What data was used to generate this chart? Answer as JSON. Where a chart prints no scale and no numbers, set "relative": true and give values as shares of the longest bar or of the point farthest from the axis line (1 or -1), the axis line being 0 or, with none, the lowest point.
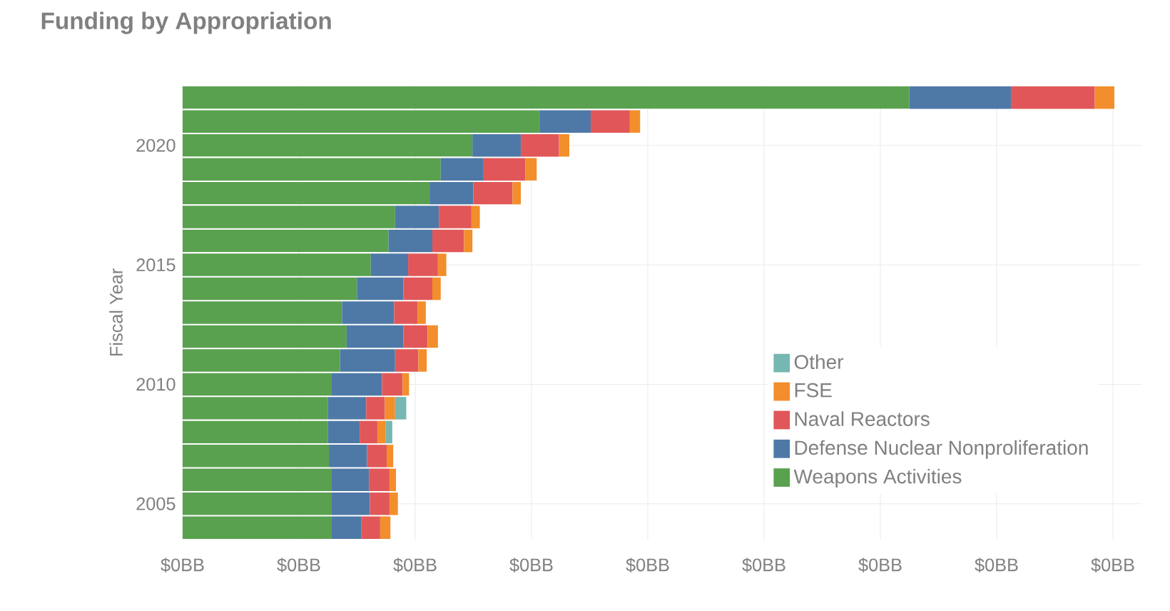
{
  "chart_data": {
    "type": "bar",
    "orientation": "horizontal",
    "stacked": true,
    "relative": true,
    "title": "Funding by Appropriation",
    "ylabel": "Fiscal Year",
    "categories": [
      null,
      null,
      "2020",
      null,
      null,
      null,
      null,
      "2015",
      null,
      null,
      null,
      null,
      "2010",
      null,
      null,
      null,
      null,
      "2005",
      null
    ],
    "series": [
      {
        "name": "Weapons Activities",
        "color": "#59a14f",
        "values": [
          0.78,
          0.383,
          0.311,
          0.277,
          0.265,
          0.228,
          0.221,
          0.202,
          0.187,
          0.171,
          0.176,
          0.169,
          0.16,
          0.156,
          0.156,
          0.157,
          0.16,
          0.16,
          0.16
        ]
      },
      {
        "name": "Defense Nuclear Nonproliferation",
        "color": "#4e79a7",
        "values": [
          0.109,
          0.055,
          0.052,
          0.046,
          0.047,
          0.047,
          0.047,
          0.04,
          0.05,
          0.056,
          0.061,
          0.059,
          0.054,
          0.041,
          0.034,
          0.041,
          0.04,
          0.041,
          0.032
        ]
      },
      {
        "name": "Naval Reactors",
        "color": "#e15759",
        "values": [
          0.09,
          0.042,
          0.041,
          0.045,
          0.042,
          0.035,
          0.034,
          0.032,
          0.031,
          0.025,
          0.026,
          0.025,
          0.022,
          0.02,
          0.019,
          0.021,
          0.022,
          0.021,
          0.02
        ]
      },
      {
        "name": "FSE",
        "color": "#f28e2b",
        "values": [
          0.021,
          0.011,
          0.011,
          0.012,
          0.009,
          0.009,
          0.009,
          0.009,
          0.009,
          0.009,
          0.011,
          0.009,
          0.007,
          0.011,
          0.009,
          0.007,
          0.007,
          0.009,
          0.011
        ]
      },
      {
        "name": "Other",
        "color": "#76b7b2",
        "values": [
          null,
          null,
          null,
          null,
          null,
          null,
          null,
          null,
          null,
          null,
          null,
          null,
          null,
          0.012,
          0.007,
          null,
          null,
          null,
          null
        ]
      }
    ],
    "annotations": [
      "$0BB",
      "$0BB",
      "$0BB",
      "$0BB",
      "$0BB",
      "$0BB",
      "$0BB",
      "$0BB",
      "$0BB"
    ],
    "grid": true,
    "legend": "bottom right"
  }
}
